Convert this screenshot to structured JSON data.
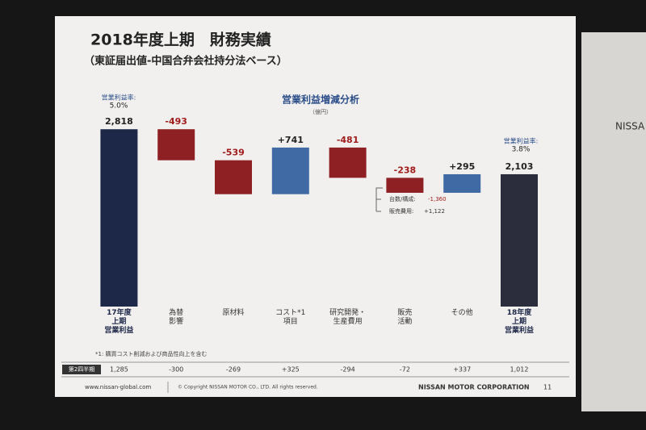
{
  "chart_data": {
    "type": "waterfall",
    "title": "2018年度上期　財務実績",
    "subtitle": "（東証届出値-中国合弁会社持分法ベース）",
    "chart_title": "営業利益増減分析",
    "unit": "（億円）",
    "categories": [
      "17年度\n上期\n営業利益",
      "為替\n影響",
      "原材料",
      "コスト*1\n項目",
      "研究開発・\n生産費用",
      "販売\n活動",
      "その他",
      "18年度\n上期\n営業利益"
    ],
    "values": [
      2818,
      -493,
      -539,
      741,
      -481,
      -238,
      295,
      2103
    ],
    "value_labels": [
      "2,818",
      "-493",
      "-539",
      "+741",
      "-481",
      "-238",
      "+295",
      "2,103"
    ],
    "colors": [
      "#1d2748",
      "#8e1f22",
      "#8e1f22",
      "#3f6aa3",
      "#8e1f22",
      "#8e1f22",
      "#3f6aa3",
      "#2b2c3c"
    ],
    "ylim": [
      0,
      3000
    ],
    "margin_notes": [
      [
        "営業利益率:",
        "5.0%"
      ],
      [
        "営業利益率:",
        "3.8%"
      ]
    ],
    "breakdown": [
      [
        "台数/構成:",
        "-1,360"
      ],
      [
        "販売費用:",
        "+1,122"
      ]
    ],
    "footnote": "*1: 購買コスト削減および商品性向上を含む",
    "q2_row": {
      "label": "第2四半期",
      "values": [
        "1,285",
        "-300",
        "-269",
        "+325",
        "-294",
        "-72",
        "+337",
        "1,012"
      ]
    },
    "footer": {
      "url": "www.nissan-global.com",
      "copyright": "© Copyright NISSAN MOTOR CO., LTD. All rights reserved.",
      "company": "NISSAN MOTOR CORPORATION",
      "page": "11"
    },
    "background_sign": "NISSA"
  }
}
